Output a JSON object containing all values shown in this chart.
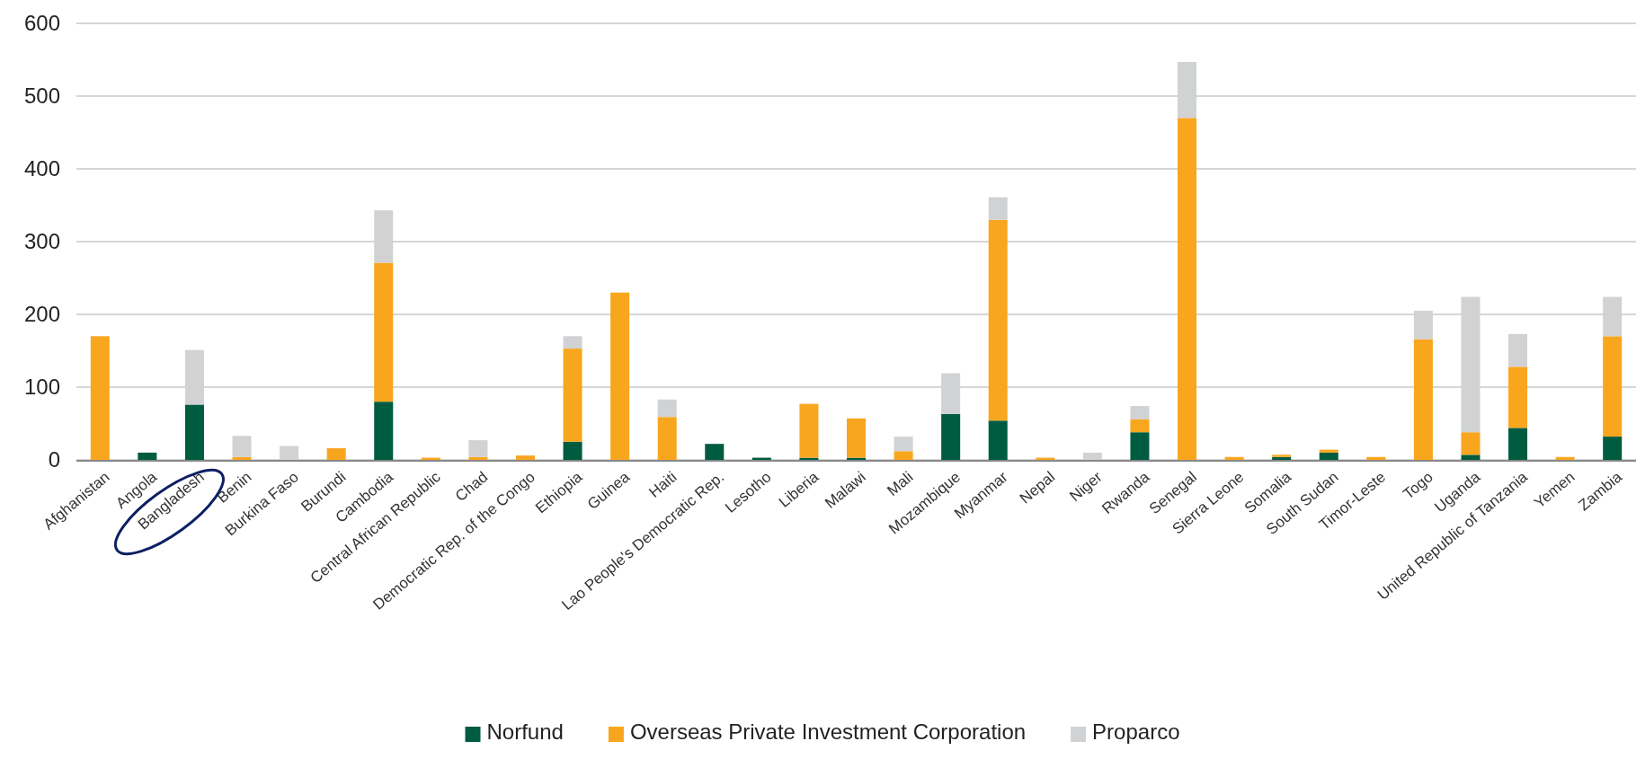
{
  "chart_data": {
    "type": "bar",
    "stacked": true,
    "categories": [
      "Afghanistan",
      "Angola",
      "Bangladesh",
      "Benin",
      "Burkina Faso",
      "Burundi",
      "Cambodia",
      "Central African Republic",
      "Chad",
      "Democratic Rep. of the Congo",
      "Ethiopia",
      "Guinea",
      "Haiti",
      "Lao People's Democratic Rep.",
      "Lesotho",
      "Liberia",
      "Malawi",
      "Mali",
      "Mozambique",
      "Myanmar",
      "Nepal",
      "Niger",
      "Rwanda",
      "Senegal",
      "Sierra Leone",
      "Somalia",
      "South Sudan",
      "Timor-Leste",
      "Togo",
      "Uganda",
      "United Republic of Tanzania",
      "Yemen",
      "Zambia"
    ],
    "series": [
      {
        "name": "Norfund",
        "color": "#005c41",
        "values": [
          0,
          10,
          76,
          0,
          0,
          0,
          80,
          0,
          0,
          0,
          25,
          0,
          0,
          22,
          3,
          3,
          3,
          0,
          63,
          54,
          0,
          0,
          38,
          0,
          0,
          4,
          10,
          0,
          0,
          7,
          44,
          0,
          32
        ]
      },
      {
        "name": "Overseas Private Investment Corporation",
        "color": "#f9a61f",
        "values": [
          170,
          0,
          0,
          4,
          0,
          16,
          191,
          3,
          4,
          6,
          128,
          230,
          59,
          0,
          0,
          74,
          54,
          12,
          0,
          276,
          3,
          0,
          18,
          470,
          4,
          3,
          4,
          4,
          166,
          31,
          84,
          4,
          138
        ]
      },
      {
        "name": "Proparco",
        "color": "#d1d2d4",
        "values": [
          0,
          0,
          75,
          29,
          19,
          0,
          72,
          0,
          23,
          0,
          17,
          0,
          24,
          0,
          0,
          0,
          0,
          20,
          56,
          31,
          0,
          10,
          18,
          77,
          0,
          0,
          0,
          0,
          39,
          186,
          45,
          0,
          54
        ]
      }
    ],
    "ylim": [
      0,
      600
    ],
    "yticks": [
      0,
      100,
      200,
      300,
      400,
      500,
      600
    ],
    "grid": "y",
    "legend": "bottom"
  }
}
